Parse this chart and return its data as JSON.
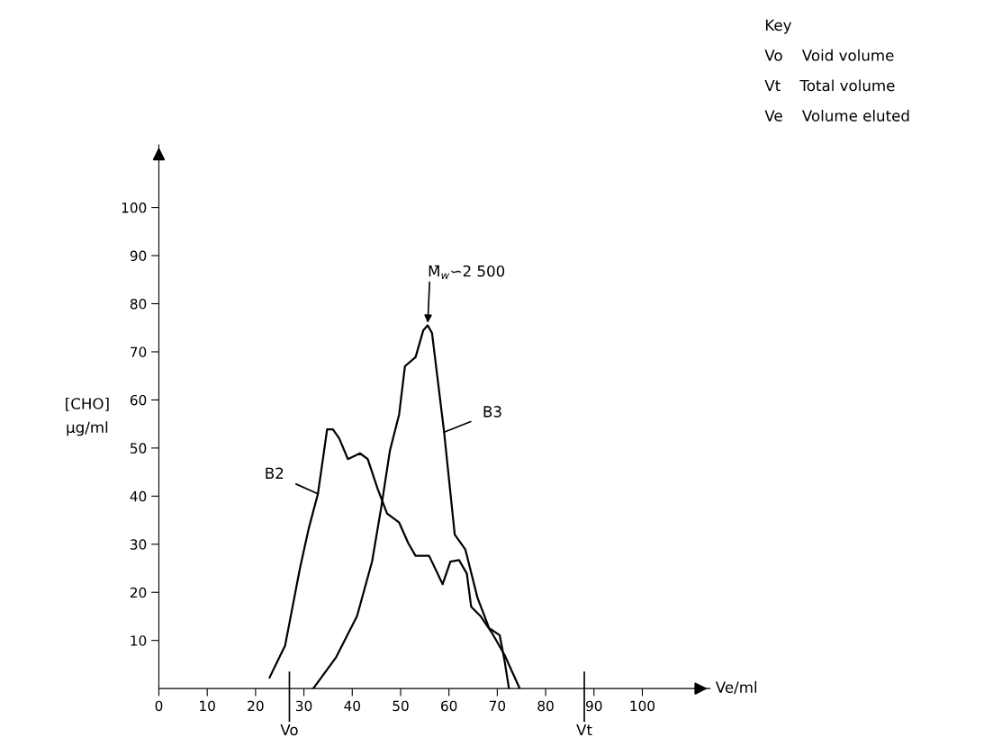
{
  "chart_data": {
    "type": "line",
    "xlabel": "Ve/ml",
    "ylabel": "[CHO]\nµg/ml",
    "xlim": [
      0,
      114
    ],
    "ylim": [
      0,
      113
    ],
    "xticks": [
      0,
      10,
      20,
      30,
      40,
      50,
      60,
      70,
      80,
      90,
      100
    ],
    "yticks": [
      10,
      20,
      30,
      40,
      50,
      60,
      70,
      80,
      90,
      100
    ],
    "grid": false,
    "legend": false,
    "marker": "none",
    "line_style": "solid",
    "series": [
      {
        "name": "B2",
        "color": "#000000",
        "x": [
          22.9,
          26.1,
          29.2,
          31.0,
          32.9,
          34.1,
          34.8,
          36.0,
          37.3,
          39.1,
          41.6,
          43.2,
          45.3,
          47.2,
          49.7,
          51.6,
          53.1,
          55.9,
          58.7,
          60.3,
          62.1,
          63.7,
          64.6,
          66.5,
          69.0,
          71.5,
          74.6
        ],
        "values": [
          2.3,
          8.9,
          25.1,
          33.3,
          40.5,
          48.9,
          53.9,
          53.9,
          52.0,
          47.7,
          48.9,
          47.7,
          41.4,
          36.4,
          34.5,
          30.2,
          27.6,
          27.6,
          21.7,
          26.4,
          26.7,
          23.9,
          17.0,
          15.1,
          11.4,
          7.0,
          0.1
        ]
      },
      {
        "name": "B3",
        "color": "#000000",
        "x": [
          32.0,
          36.6,
          41.0,
          44.1,
          46.0,
          47.8,
          49.7,
          50.9,
          53.1,
          54.7,
          55.6,
          56.5,
          59.0,
          61.2,
          63.4,
          65.9,
          68.3,
          70.5,
          71.5,
          72.4
        ],
        "values": [
          0.1,
          6.4,
          15.1,
          26.4,
          37.7,
          49.5,
          57.0,
          67.0,
          68.9,
          74.5,
          75.5,
          73.9,
          53.3,
          32.0,
          28.9,
          18.9,
          12.6,
          11.1,
          5.8,
          0.1
        ]
      }
    ],
    "ref_lines": [
      {
        "axis": "x",
        "value": 27,
        "label": "Vo"
      },
      {
        "axis": "x",
        "value": 88,
        "label": "Vt"
      }
    ],
    "annotations": [
      {
        "text": "M̄$_{w}$∽2 500",
        "x": 55.6,
        "y": 75.5
      },
      "Key",
      "Vo    Void volume",
      "Vt    Total volume",
      "Ve    Volume eluted"
    ]
  }
}
